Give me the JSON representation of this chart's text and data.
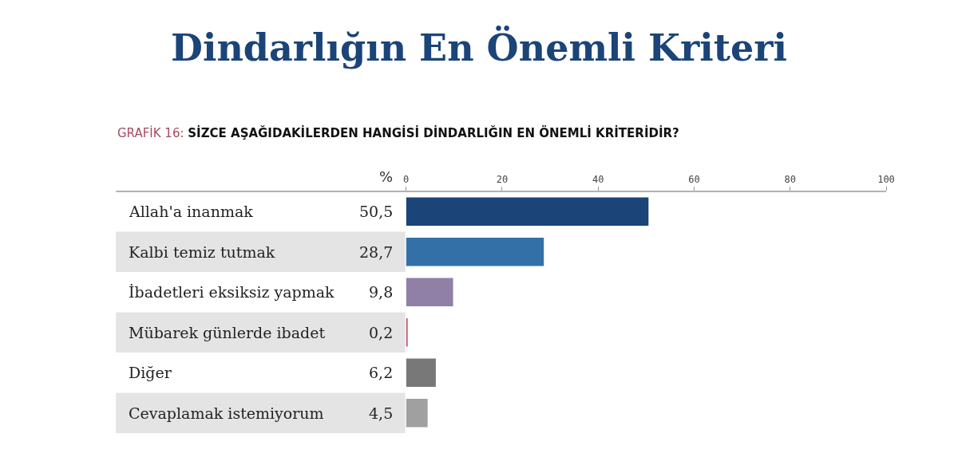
{
  "chart_data": {
    "type": "bar",
    "orientation": "horizontal",
    "title": "Dindarlığın En Önemli Kriteri",
    "subtitle": "GRAFİK 16: SİZCE AŞAĞIDAKİLERDEN HANGİSİ DİNDARLIĞIN EN ÖNEMLİ KRİTERİDİR?",
    "annotations": [
      "%"
    ],
    "categories": [
      "Allah'a inanmak",
      "Kalbi temiz tutmak",
      "İbadetleri eksiksiz yapmak",
      "Mübarek günlerde ibadet",
      "Diğer",
      "Cevaplamak istemiyorum"
    ],
    "values": [
      50.5,
      28.7,
      9.8,
      0.2,
      6.2,
      4.5
    ],
    "value_labels": [
      "50,5",
      "28,7",
      "9,8",
      "0,2",
      "6,2",
      "4,5"
    ],
    "colors": [
      "#1b4478",
      "#3470a8",
      "#9080a8",
      "#c0506a",
      "#787878",
      "#a0a0a0"
    ],
    "xlim": [
      0,
      100
    ],
    "xticks": [
      0,
      20,
      40,
      60,
      80,
      100
    ],
    "legend": false
  }
}
